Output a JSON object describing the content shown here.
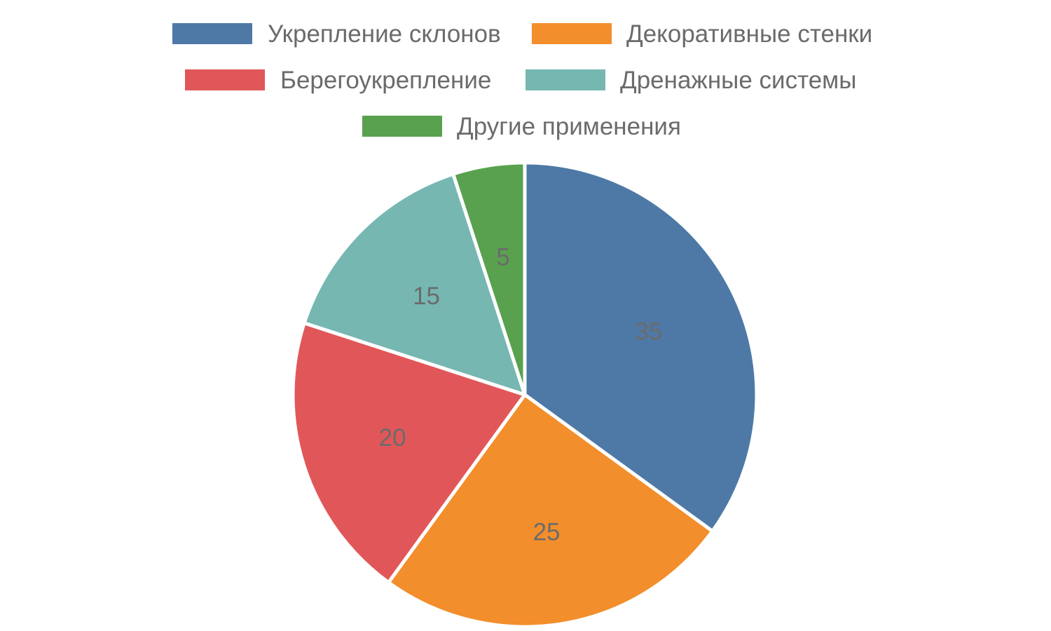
{
  "chart_data": {
    "type": "pie",
    "title": "",
    "categories": [
      "Укрепление склонов",
      "Декоративные стенки",
      "Берегоукрепление",
      "Дренажные системы",
      "Другие применения"
    ],
    "values": [
      35,
      25,
      20,
      15,
      5
    ],
    "data_labels": [
      "35",
      "25",
      "20",
      "15",
      "5"
    ],
    "colors": [
      "#4e79a7",
      "#f28e2b",
      "#e15759",
      "#76b7b2",
      "#59a14f"
    ],
    "legend_position": "top",
    "start_angle_deg": 0,
    "direction": "clockwise"
  }
}
